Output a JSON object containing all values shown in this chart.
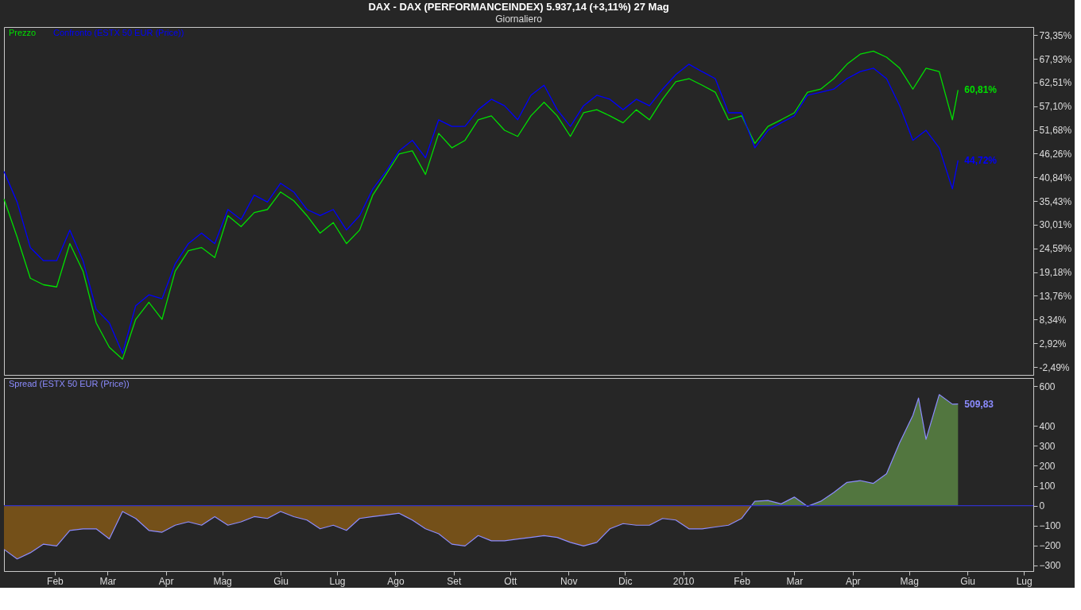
{
  "chart_data": [
    {
      "type": "line",
      "title": "DAX - DAX (PERFORMANCEINDEX)   5.937,14 (+3,11%)   27 Mag",
      "subtitle": "Giornaliero",
      "x": [
        "2009-01-05",
        "2009-01-12",
        "2009-01-19",
        "2009-01-26",
        "2009-02-02",
        "2009-02-09",
        "2009-02-16",
        "2009-02-23",
        "2009-03-02",
        "2009-03-09",
        "2009-03-16",
        "2009-03-23",
        "2009-03-30",
        "2009-04-06",
        "2009-04-13",
        "2009-04-20",
        "2009-04-27",
        "2009-05-04",
        "2009-05-11",
        "2009-05-18",
        "2009-05-25",
        "2009-06-01",
        "2009-06-08",
        "2009-06-15",
        "2009-06-22",
        "2009-06-29",
        "2009-07-06",
        "2009-07-13",
        "2009-07-20",
        "2009-07-27",
        "2009-08-03",
        "2009-08-10",
        "2009-08-17",
        "2009-08-24",
        "2009-08-31",
        "2009-09-07",
        "2009-09-14",
        "2009-09-21",
        "2009-09-28",
        "2009-10-05",
        "2009-10-12",
        "2009-10-19",
        "2009-10-26",
        "2009-11-02",
        "2009-11-09",
        "2009-11-16",
        "2009-11-23",
        "2009-11-30",
        "2009-12-07",
        "2009-12-14",
        "2009-12-21",
        "2009-12-28",
        "2010-01-04",
        "2010-01-11",
        "2010-01-18",
        "2010-01-25",
        "2010-02-01",
        "2010-02-08",
        "2010-02-15",
        "2010-02-22",
        "2010-03-01",
        "2010-03-08",
        "2010-03-15",
        "2010-03-22",
        "2010-03-29",
        "2010-04-05",
        "2010-04-12",
        "2010-04-19",
        "2010-04-26",
        "2010-05-03",
        "2010-05-10",
        "2010-05-17",
        "2010-05-24",
        "2010-05-27"
      ],
      "series": [
        {
          "name": "Prezzo",
          "color": "#00e000",
          "values": [
            35.9,
            27.2,
            17.8,
            16.3,
            15.8,
            25.7,
            19.4,
            7.6,
            2.0,
            -0.7,
            8.4,
            12.3,
            8.4,
            19.4,
            24.1,
            24.8,
            22.5,
            32.1,
            29.6,
            32.8,
            33.5,
            37.5,
            35.5,
            32.1,
            28.1,
            30.5,
            25.7,
            28.8,
            36.8,
            41.5,
            46.2,
            46.9,
            41.5,
            50.9,
            47.6,
            49.3,
            54.0,
            54.9,
            51.6,
            50.2,
            54.9,
            58.0,
            54.9,
            50.2,
            55.6,
            56.3,
            54.9,
            53.3,
            56.3,
            54.0,
            58.7,
            62.7,
            63.4,
            61.9,
            60.3,
            54.0,
            54.9,
            48.6,
            52.5,
            54.0,
            55.6,
            60.3,
            61.0,
            63.4,
            66.7,
            69.0,
            69.7,
            68.3,
            65.8,
            61.0,
            65.8,
            65.0,
            54.0,
            60.81
          ]
        },
        {
          "name": "Confronto (ESTX 50 EUR (Price))",
          "color": "#0000ff",
          "values": [
            42.2,
            35.2,
            24.8,
            21.8,
            21.8,
            28.8,
            21.8,
            10.7,
            7.6,
            0.6,
            11.5,
            14.0,
            13.1,
            21.1,
            25.7,
            28.1,
            25.7,
            33.5,
            31.2,
            36.8,
            35.2,
            39.5,
            37.5,
            33.5,
            32.1,
            33.5,
            28.8,
            32.1,
            38.2,
            42.2,
            46.9,
            49.3,
            45.3,
            54.0,
            52.5,
            52.5,
            56.3,
            58.7,
            57.2,
            54.0,
            59.6,
            61.9,
            56.3,
            52.5,
            57.2,
            59.6,
            58.7,
            56.3,
            58.7,
            57.2,
            61.0,
            64.3,
            66.7,
            65.0,
            63.4,
            55.6,
            55.6,
            47.6,
            51.6,
            53.3,
            54.9,
            59.6,
            60.3,
            61.0,
            63.4,
            65.0,
            65.8,
            63.4,
            57.2,
            49.3,
            51.6,
            47.6,
            38.2,
            44.72
          ]
        }
      ],
      "xlim": [
        "2009-01-05",
        "2010-07-06"
      ],
      "ylim": [
        -4.3,
        75.2
      ],
      "yticks": [
        {
          "value": 73.35,
          "label": "73,35%"
        },
        {
          "value": 67.93,
          "label": "67,93%"
        },
        {
          "value": 62.51,
          "label": "62,51%"
        },
        {
          "value": 57.1,
          "label": "57,10%"
        },
        {
          "value": 51.68,
          "label": "51,68%"
        },
        {
          "value": 46.26,
          "label": "46,26%"
        },
        {
          "value": 40.84,
          "label": "40,84%"
        },
        {
          "value": 35.43,
          "label": "35,43%"
        },
        {
          "value": 30.01,
          "label": "30,01%"
        },
        {
          "value": 24.59,
          "label": "24,59%"
        },
        {
          "value": 19.18,
          "label": "19,18%"
        },
        {
          "value": 13.76,
          "label": "13,76%"
        },
        {
          "value": 8.34,
          "label": "8,34%"
        },
        {
          "value": 2.92,
          "label": "2,92%"
        },
        {
          "value": -2.49,
          "label": "-2,49%"
        }
      ],
      "annotations": [
        {
          "text": "60,81%",
          "x": "2010-05-27",
          "y": 60.81
        },
        {
          "text": "44,72%",
          "x": "2010-05-27",
          "y": 44.72
        }
      ],
      "tick_labels": "y",
      "legend": "top left",
      "grid": false
    },
    {
      "type": "area",
      "x": [
        "2009-01-05",
        "2009-01-12",
        "2009-01-19",
        "2009-01-26",
        "2009-02-02",
        "2009-02-09",
        "2009-02-16",
        "2009-02-23",
        "2009-03-02",
        "2009-03-09",
        "2009-03-16",
        "2009-03-23",
        "2009-03-30",
        "2009-04-06",
        "2009-04-13",
        "2009-04-20",
        "2009-04-27",
        "2009-05-04",
        "2009-05-11",
        "2009-05-18",
        "2009-05-25",
        "2009-06-01",
        "2009-06-08",
        "2009-06-15",
        "2009-06-22",
        "2009-06-29",
        "2009-07-06",
        "2009-07-13",
        "2009-07-20",
        "2009-07-27",
        "2009-08-03",
        "2009-08-10",
        "2009-08-17",
        "2009-08-24",
        "2009-08-31",
        "2009-09-07",
        "2009-09-14",
        "2009-09-21",
        "2009-09-28",
        "2009-10-05",
        "2009-10-12",
        "2009-10-19",
        "2009-10-26",
        "2009-11-02",
        "2009-11-09",
        "2009-11-16",
        "2009-11-23",
        "2009-11-30",
        "2009-12-07",
        "2009-12-14",
        "2009-12-21",
        "2009-12-28",
        "2010-01-04",
        "2010-01-11",
        "2010-01-18",
        "2010-01-25",
        "2010-02-01",
        "2010-02-08",
        "2010-02-15",
        "2010-02-22",
        "2010-03-01",
        "2010-03-08",
        "2010-03-15",
        "2010-03-22",
        "2010-03-29",
        "2010-04-05",
        "2010-04-12",
        "2010-04-19",
        "2010-04-26",
        "2010-05-03",
        "2010-05-06",
        "2010-05-10",
        "2010-05-17",
        "2010-05-24",
        "2010-05-27"
      ],
      "series": [
        {
          "name": "Spread (ESTX 50 EUR (Price))",
          "color": "#8c8cff",
          "values": [
            -219,
            -267,
            -236,
            -193,
            -202,
            -124,
            -116,
            -116,
            -167,
            -29,
            -64,
            -124,
            -133,
            -98,
            -81,
            -98,
            -55,
            -98,
            -81,
            -55,
            -64,
            -29,
            -55,
            -72,
            -116,
            -98,
            -124,
            -64,
            -55,
            -47,
            -38,
            -72,
            -116,
            -141,
            -193,
            -202,
            -150,
            -176,
            -176,
            -167,
            -159,
            -150,
            -159,
            -184,
            -202,
            -184,
            -116,
            -90,
            -98,
            -98,
            -64,
            -72,
            -116,
            -116,
            -107,
            -98,
            -64,
            22,
            26,
            9,
            43,
            -3,
            22,
            66,
            117,
            126,
            112,
            160,
            316,
            453,
            540,
            333,
            557,
            509,
            509.83
          ]
        }
      ],
      "xlim": [
        "2009-01-05",
        "2010-07-06"
      ],
      "xticks": [
        {
          "value": "2009-02-01",
          "label": "Feb"
        },
        {
          "value": "2009-03-01",
          "label": "Mar"
        },
        {
          "value": "2009-04-01",
          "label": "Apr"
        },
        {
          "value": "2009-05-01",
          "label": "Mag"
        },
        {
          "value": "2009-06-01",
          "label": "Giu"
        },
        {
          "value": "2009-07-01",
          "label": "Lug"
        },
        {
          "value": "2009-08-01",
          "label": "Ago"
        },
        {
          "value": "2009-09-01",
          "label": "Set"
        },
        {
          "value": "2009-10-01",
          "label": "Ott"
        },
        {
          "value": "2009-11-01",
          "label": "Nov"
        },
        {
          "value": "2009-12-01",
          "label": "Dic"
        },
        {
          "value": "2010-01-01",
          "label": "2010"
        },
        {
          "value": "2010-02-01",
          "label": "Feb"
        },
        {
          "value": "2010-03-01",
          "label": "Mar"
        },
        {
          "value": "2010-04-01",
          "label": "Apr"
        },
        {
          "value": "2010-05-01",
          "label": "Mag"
        },
        {
          "value": "2010-06-01",
          "label": "Giu"
        },
        {
          "value": "2010-07-01",
          "label": "Lug"
        }
      ],
      "ylim": [
        -328,
        640
      ],
      "yticks": [
        600,
        400,
        300,
        200,
        100,
        0,
        -100,
        -200,
        -300
      ],
      "ref_lines": [
        {
          "axis": "y",
          "value": 0,
          "color": "#3030c8"
        }
      ],
      "annotations": [
        {
          "text": "509,83",
          "x": "2010-05-27",
          "y": 509.83
        }
      ],
      "legend": "top left",
      "grid": false
    }
  ]
}
